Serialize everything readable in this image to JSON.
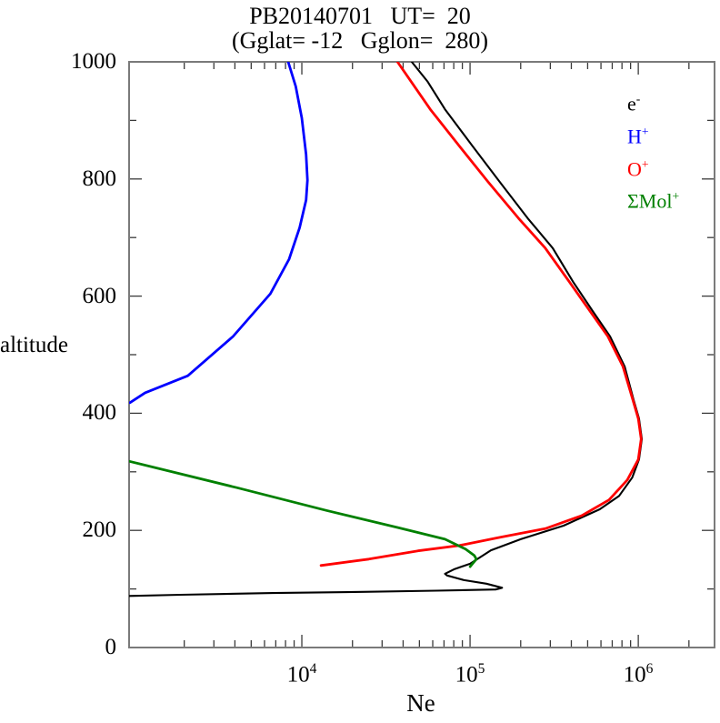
{
  "title": {
    "line1": "PB20140701   UT=  20",
    "line2": "(Gglat= -12   Gglon=  280)"
  },
  "y_axis": {
    "label": "altitude",
    "tick_labels": [
      "1000",
      "800",
      "600",
      "400",
      "200",
      "0"
    ]
  },
  "x_axis": {
    "label": "Ne",
    "tick_base": "10",
    "tick_exponents": [
      "4",
      "5",
      "6"
    ]
  },
  "legend": {
    "items": [
      {
        "base": "e",
        "sup": "-",
        "color": "#000000"
      },
      {
        "base": "H",
        "sup": "+",
        "color": "#0000ff"
      },
      {
        "base": "O",
        "sup": "+",
        "color": "#ff0000"
      },
      {
        "base": "ΣMol",
        "sup": "+",
        "color": "#008000"
      }
    ]
  },
  "chart_data": {
    "type": "line",
    "title": "PB20140701 UT= 20 (Gglat= -12 Gglon= 280)",
    "xlabel": "Ne",
    "ylabel": "altitude",
    "x_scale": "log",
    "xlim": [
      940,
      2840000
    ],
    "ylim": [
      0,
      1000
    ],
    "x_major_ticks": [
      10000,
      100000,
      1000000
    ],
    "y_major_ticks": [
      0,
      200,
      400,
      600,
      800,
      1000
    ],
    "y_minor_ticks": [
      100,
      300,
      500,
      700,
      900
    ],
    "grid": false,
    "legend_position": "top-right",
    "series": [
      {
        "name": "e-",
        "color": "#000000",
        "points": [
          [
            940,
            88
          ],
          [
            1900,
            90
          ],
          [
            6700,
            93
          ],
          [
            23000,
            95
          ],
          [
            63000,
            97
          ],
          [
            142000,
            99
          ],
          [
            155000,
            102
          ],
          [
            125000,
            109
          ],
          [
            92000,
            115
          ],
          [
            73000,
            123
          ],
          [
            71000,
            126
          ],
          [
            81000,
            134
          ],
          [
            100000,
            143
          ],
          [
            133000,
            166
          ],
          [
            200000,
            185
          ],
          [
            360000,
            208
          ],
          [
            590000,
            236
          ],
          [
            770000,
            259
          ],
          [
            920000,
            290
          ],
          [
            1010000,
            321
          ],
          [
            1050000,
            356
          ],
          [
            1010000,
            391
          ],
          [
            940000,
            422
          ],
          [
            830000,
            480
          ],
          [
            680000,
            531
          ],
          [
            540000,
            573
          ],
          [
            410000,
            624
          ],
          [
            310000,
            682
          ],
          [
            220000,
            733
          ],
          [
            150000,
            795
          ],
          [
            103000,
            857
          ],
          [
            71000,
            919
          ],
          [
            56000,
            966
          ],
          [
            45000,
            1000
          ]
        ]
      },
      {
        "name": "H+",
        "color": "#0000ff",
        "points": [
          [
            950,
            418
          ],
          [
            1170,
            435
          ],
          [
            2100,
            464
          ],
          [
            3900,
            531
          ],
          [
            6500,
            604
          ],
          [
            8400,
            663
          ],
          [
            9700,
            717
          ],
          [
            10600,
            764
          ],
          [
            10800,
            798
          ],
          [
            10600,
            842
          ],
          [
            10000,
            904
          ],
          [
            9200,
            958
          ],
          [
            8300,
            1000
          ]
        ]
      },
      {
        "name": "O+",
        "color": "#ff0000",
        "points": [
          [
            13000,
            140
          ],
          [
            25000,
            151
          ],
          [
            49000,
            165
          ],
          [
            86000,
            174
          ],
          [
            150000,
            188
          ],
          [
            280000,
            203
          ],
          [
            460000,
            225
          ],
          [
            670000,
            252
          ],
          [
            860000,
            286
          ],
          [
            1000000,
            321
          ],
          [
            1040000,
            356
          ],
          [
            1000000,
            391
          ],
          [
            930000,
            422
          ],
          [
            810000,
            480
          ],
          [
            660000,
            531
          ],
          [
            520000,
            573
          ],
          [
            390000,
            624
          ],
          [
            280000,
            682
          ],
          [
            194000,
            733
          ],
          [
            128000,
            795
          ],
          [
            86000,
            857
          ],
          [
            58000,
            919
          ],
          [
            37000,
            1000
          ]
        ]
      },
      {
        "name": "ΣMol+",
        "color": "#008000",
        "points": [
          [
            940,
            318
          ],
          [
            4100,
            273
          ],
          [
            14000,
            234
          ],
          [
            37000,
            205
          ],
          [
            71000,
            185
          ],
          [
            94000,
            168
          ],
          [
            106000,
            157
          ],
          [
            109000,
            151
          ],
          [
            104000,
            144
          ],
          [
            100000,
            138
          ]
        ]
      }
    ]
  }
}
